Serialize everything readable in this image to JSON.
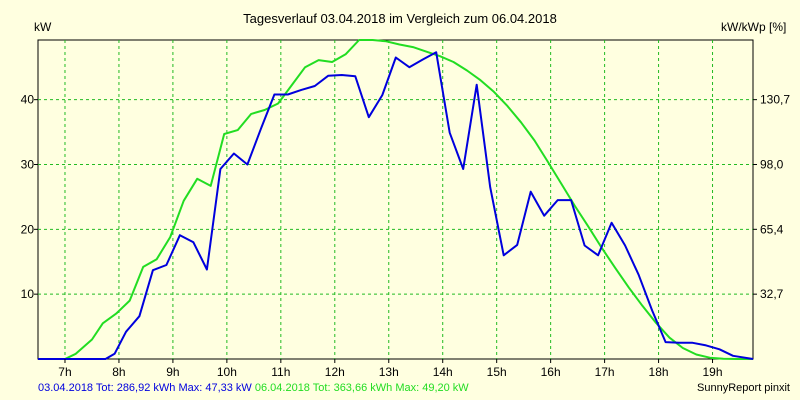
{
  "chart_data": {
    "type": "line",
    "title": "Tagesverlauf 03.04.2018 im Vergleich zum 06.04.2018",
    "ylabel_left": "kW",
    "ylabel_right": "kW/kWp [%]",
    "x_ticks": [
      "7h",
      "8h",
      "9h",
      "10h",
      "11h",
      "12h",
      "13h",
      "14h",
      "15h",
      "16h",
      "17h",
      "18h",
      "19h"
    ],
    "x_tick_values": [
      7,
      8,
      9,
      10,
      11,
      12,
      13,
      14,
      15,
      16,
      17,
      18,
      19
    ],
    "xlim": [
      6.5,
      19.75
    ],
    "ylim": [
      0,
      49.2
    ],
    "y_ticks": [
      10,
      20,
      30,
      40
    ],
    "y_ticks_right": [
      "32,7",
      "65,4",
      "98,0",
      "130,7"
    ],
    "y_ticks_right_values": [
      10,
      20,
      30,
      40
    ],
    "colors": {
      "series1": "#0000dd",
      "series2": "#22dd22",
      "grid": "#22bb22",
      "background": "#ffffe0",
      "plot_background": "#ffffe0"
    },
    "series": [
      {
        "name": "03.04.2018",
        "x": [
          6.5,
          7.0,
          7.25,
          7.5,
          7.75,
          7.92,
          8.13,
          8.38,
          8.63,
          8.88,
          9.13,
          9.38,
          9.63,
          9.88,
          10.13,
          10.38,
          10.63,
          10.88,
          11.13,
          11.38,
          11.63,
          11.88,
          12.13,
          12.38,
          12.63,
          12.88,
          13.13,
          13.38,
          13.63,
          13.88,
          14.13,
          14.38,
          14.63,
          14.88,
          15.13,
          15.38,
          15.63,
          15.88,
          16.13,
          16.38,
          16.63,
          16.88,
          17.13,
          17.38,
          17.63,
          17.88,
          18.13,
          18.38,
          18.63,
          18.88,
          19.13,
          19.38,
          19.75
        ],
        "values": [
          0,
          0,
          0,
          0,
          0,
          0.8,
          4.2,
          6.6,
          13.7,
          14.5,
          19.1,
          18.0,
          13.8,
          29.3,
          31.7,
          30.0,
          35.5,
          40.8,
          40.8,
          41.5,
          42.1,
          43.7,
          43.8,
          43.6,
          37.3,
          40.7,
          46.5,
          45.0,
          46.2,
          47.3,
          34.9,
          29.3,
          42.3,
          26.5,
          16.0,
          17.6,
          25.8,
          22.1,
          24.5,
          24.5,
          17.5,
          16.0,
          21.0,
          17.5,
          13.0,
          7.5,
          2.6,
          2.5,
          2.5,
          2.1,
          1.5,
          0.5,
          0
        ]
      },
      {
        "name": "06.04.2018",
        "x": [
          6.5,
          7.0,
          7.2,
          7.5,
          7.7,
          7.95,
          8.2,
          8.45,
          8.7,
          8.95,
          9.2,
          9.45,
          9.7,
          9.95,
          10.2,
          10.45,
          10.7,
          10.95,
          11.2,
          11.45,
          11.7,
          11.95,
          12.2,
          12.45,
          12.7,
          12.95,
          13.2,
          13.45,
          13.7,
          13.95,
          14.2,
          14.45,
          14.7,
          14.95,
          15.2,
          15.45,
          15.7,
          15.95,
          16.2,
          16.45,
          16.7,
          16.95,
          17.2,
          17.45,
          17.7,
          17.95,
          18.2,
          18.45,
          18.7,
          18.95,
          19.2,
          19.45,
          19.75
        ],
        "values": [
          0,
          0,
          0.8,
          3.0,
          5.5,
          7.0,
          9.0,
          14.2,
          15.4,
          18.8,
          24.4,
          27.8,
          26.7,
          34.7,
          35.3,
          37.8,
          38.4,
          39.4,
          42.2,
          45.0,
          46.1,
          45.8,
          47.0,
          49.2,
          49.2,
          49.0,
          48.5,
          48.1,
          47.4,
          46.7,
          45.8,
          44.5,
          43.0,
          41.2,
          39.0,
          36.5,
          33.7,
          30.4,
          27.0,
          23.6,
          20.4,
          17.1,
          14.0,
          11.0,
          8.2,
          5.6,
          3.3,
          1.7,
          0.7,
          0.2,
          0.05,
          0,
          0
        ]
      }
    ]
  },
  "footer": {
    "series1_summary": "03.04.2018 Tot: 286,92 kWh Max: 47,33 kW",
    "series2_summary": "06.04.2018 Tot: 363,66 kWh Max: 49,20 kW",
    "credit": "SunnyReport pinxit"
  }
}
